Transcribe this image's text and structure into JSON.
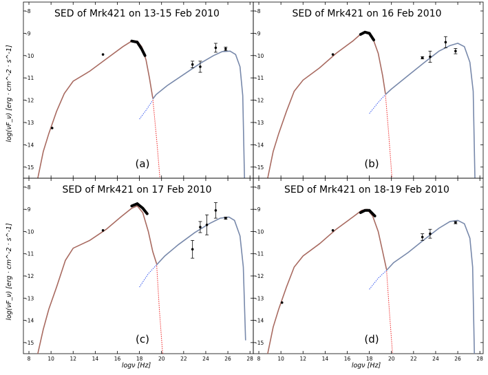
{
  "chart_data": {
    "type": "scatter",
    "xlabel": "logν [Hz]",
    "ylabel": "log(νF_ν) [erg · cm^-2 · s^-1]",
    "xlim": [
      7.5,
      28.3
    ],
    "ylim": [
      -15.5,
      -7.6
    ],
    "xticks": [
      8,
      10,
      12,
      14,
      16,
      18,
      20,
      22,
      24,
      26,
      28
    ],
    "yticks": [
      -8,
      -9,
      -10,
      -11,
      -12,
      -13,
      -14,
      -15
    ],
    "colors": {
      "synchrotron": "#a86a60",
      "ic": "#7788aa",
      "sync_ext": "#ee2222",
      "ic_ext": "#3355ee",
      "points": "#000000"
    },
    "panels": [
      {
        "title": "SED of Mrk421 on 13-15 Feb 2010",
        "tag": "(a)",
        "sync_curve": [
          [
            8.8,
            -15.5
          ],
          [
            9.3,
            -14.3
          ],
          [
            9.8,
            -13.5
          ],
          [
            10.5,
            -12.5
          ],
          [
            11.2,
            -11.7
          ],
          [
            12.0,
            -11.15
          ],
          [
            13.5,
            -10.7
          ],
          [
            15.0,
            -10.15
          ],
          [
            16.5,
            -9.6
          ],
          [
            17.3,
            -9.35
          ],
          [
            17.8,
            -9.35
          ],
          [
            18.2,
            -9.6
          ],
          [
            18.6,
            -10.2
          ],
          [
            18.9,
            -11.0
          ],
          [
            19.2,
            -11.9
          ]
        ],
        "sync_ext": [
          [
            19.2,
            -11.9
          ],
          [
            19.6,
            -14.0
          ],
          [
            19.85,
            -15.5
          ]
        ],
        "ic_curve": [
          [
            19.2,
            -11.95
          ],
          [
            19.5,
            -11.75
          ],
          [
            20.5,
            -11.35
          ],
          [
            22.0,
            -10.85
          ],
          [
            23.5,
            -10.35
          ],
          [
            24.7,
            -10.0
          ],
          [
            25.5,
            -9.82
          ],
          [
            26.2,
            -9.8
          ],
          [
            26.7,
            -9.95
          ],
          [
            27.1,
            -10.5
          ],
          [
            27.35,
            -11.8
          ],
          [
            27.5,
            -15.5
          ]
        ],
        "ic_ext": [
          [
            18.0,
            -12.85
          ],
          [
            18.6,
            -12.45
          ],
          [
            19.2,
            -12.0
          ]
        ],
        "points": [
          [
            10.1,
            -13.25,
            0
          ],
          [
            14.7,
            -9.95,
            0
          ],
          [
            22.8,
            -10.4,
            0.15
          ],
          [
            23.5,
            -10.5,
            0.25
          ],
          [
            24.9,
            -9.65,
            0.2
          ],
          [
            25.8,
            -9.7,
            0.08
          ]
        ],
        "bowtie": [
          [
            17.3,
            -9.35
          ],
          [
            17.8,
            -9.4
          ],
          [
            18.2,
            -9.7
          ],
          [
            18.5,
            -10.0
          ]
        ]
      },
      {
        "title": "SED of Mrk421 on 16 Feb 2010",
        "tag": "(b)",
        "sync_curve": [
          [
            8.8,
            -15.5
          ],
          [
            9.3,
            -14.3
          ],
          [
            9.8,
            -13.5
          ],
          [
            10.5,
            -12.5
          ],
          [
            11.2,
            -11.6
          ],
          [
            12.0,
            -11.1
          ],
          [
            13.5,
            -10.55
          ],
          [
            15.0,
            -9.9
          ],
          [
            16.5,
            -9.35
          ],
          [
            17.3,
            -9.0
          ],
          [
            17.8,
            -8.95
          ],
          [
            18.3,
            -9.2
          ],
          [
            18.8,
            -9.9
          ],
          [
            19.2,
            -10.9
          ],
          [
            19.45,
            -11.7
          ]
        ],
        "sync_ext": [
          [
            19.45,
            -11.7
          ],
          [
            19.75,
            -13.5
          ],
          [
            20.05,
            -15.5
          ]
        ],
        "ic_curve": [
          [
            19.45,
            -11.75
          ],
          [
            20.0,
            -11.5
          ],
          [
            21.5,
            -10.9
          ],
          [
            23.0,
            -10.3
          ],
          [
            24.3,
            -9.8
          ],
          [
            25.3,
            -9.55
          ],
          [
            26.0,
            -9.45
          ],
          [
            26.6,
            -9.6
          ],
          [
            27.1,
            -10.3
          ],
          [
            27.4,
            -11.6
          ],
          [
            27.55,
            -15.5
          ]
        ],
        "ic_ext": [
          [
            18.0,
            -12.6
          ],
          [
            18.8,
            -12.1
          ],
          [
            19.45,
            -11.75
          ]
        ],
        "points": [
          [
            14.7,
            -9.95,
            0
          ],
          [
            22.8,
            -10.1,
            0.05
          ],
          [
            23.5,
            -10.05,
            0.25
          ],
          [
            24.9,
            -9.4,
            0.25
          ],
          [
            25.8,
            -9.8,
            0.12
          ]
        ],
        "bowtie": [
          [
            17.2,
            -9.05
          ],
          [
            17.6,
            -8.95
          ],
          [
            18.0,
            -9.0
          ],
          [
            18.4,
            -9.3
          ]
        ]
      },
      {
        "title": "SED of Mrk421 on 17 Feb 2010",
        "tag": "(c)",
        "sync_curve": [
          [
            8.8,
            -15.5
          ],
          [
            9.3,
            -14.4
          ],
          [
            9.8,
            -13.5
          ],
          [
            10.5,
            -12.5
          ],
          [
            11.3,
            -11.3
          ],
          [
            12.0,
            -10.75
          ],
          [
            13.5,
            -10.4
          ],
          [
            15.0,
            -9.9
          ],
          [
            16.3,
            -9.35
          ],
          [
            17.3,
            -8.95
          ],
          [
            17.8,
            -8.85
          ],
          [
            18.3,
            -9.15
          ],
          [
            18.8,
            -10.0
          ],
          [
            19.2,
            -10.9
          ],
          [
            19.55,
            -11.45
          ]
        ],
        "sync_ext": [
          [
            19.55,
            -11.45
          ],
          [
            19.8,
            -13.5
          ],
          [
            20.1,
            -15.5
          ]
        ],
        "ic_curve": [
          [
            19.55,
            -11.5
          ],
          [
            20.3,
            -11.1
          ],
          [
            21.5,
            -10.6
          ],
          [
            23.0,
            -10.05
          ],
          [
            24.3,
            -9.65
          ],
          [
            25.3,
            -9.4
          ],
          [
            26.1,
            -9.35
          ],
          [
            26.6,
            -9.5
          ],
          [
            27.1,
            -10.2
          ],
          [
            27.4,
            -11.6
          ],
          [
            27.6,
            -14.9
          ]
        ],
        "ic_ext": [
          [
            18.0,
            -12.5
          ],
          [
            18.8,
            -11.9
          ],
          [
            19.55,
            -11.5
          ]
        ],
        "points": [
          [
            14.7,
            -9.95,
            0
          ],
          [
            22.8,
            -10.8,
            0.4
          ],
          [
            23.5,
            -9.8,
            0.25
          ],
          [
            24.1,
            -9.7,
            0.45
          ],
          [
            24.9,
            -9.05,
            0.35
          ],
          [
            25.8,
            -9.4,
            0.05
          ]
        ],
        "bowtie": [
          [
            17.3,
            -8.85
          ],
          [
            17.8,
            -8.75
          ],
          [
            18.3,
            -8.95
          ],
          [
            18.7,
            -9.2
          ]
        ]
      },
      {
        "title": "SED of Mrk421 on 18-19 Feb 2010",
        "tag": "(d)",
        "sync_curve": [
          [
            8.8,
            -15.5
          ],
          [
            9.3,
            -14.3
          ],
          [
            9.8,
            -13.5
          ],
          [
            10.5,
            -12.5
          ],
          [
            11.2,
            -11.6
          ],
          [
            12.0,
            -11.1
          ],
          [
            13.5,
            -10.55
          ],
          [
            15.0,
            -9.9
          ],
          [
            16.5,
            -9.35
          ],
          [
            17.3,
            -9.05
          ],
          [
            17.8,
            -9.0
          ],
          [
            18.3,
            -9.3
          ],
          [
            18.8,
            -10.0
          ],
          [
            19.2,
            -10.9
          ],
          [
            19.55,
            -11.7
          ]
        ],
        "sync_ext": [
          [
            19.55,
            -11.7
          ],
          [
            19.8,
            -13.5
          ],
          [
            20.1,
            -15.5
          ]
        ],
        "ic_curve": [
          [
            19.55,
            -11.75
          ],
          [
            20.2,
            -11.4
          ],
          [
            21.5,
            -10.95
          ],
          [
            23.0,
            -10.35
          ],
          [
            24.3,
            -9.85
          ],
          [
            25.3,
            -9.55
          ],
          [
            26.0,
            -9.5
          ],
          [
            26.6,
            -9.65
          ],
          [
            27.1,
            -10.3
          ],
          [
            27.35,
            -11.6
          ],
          [
            27.5,
            -15.5
          ]
        ],
        "ic_ext": [
          [
            18.0,
            -12.6
          ],
          [
            18.8,
            -12.1
          ],
          [
            19.55,
            -11.75
          ]
        ],
        "points": [
          [
            10.1,
            -13.2,
            0
          ],
          [
            14.7,
            -9.95,
            0
          ],
          [
            22.8,
            -10.25,
            0.15
          ],
          [
            23.5,
            -10.1,
            0.2
          ],
          [
            25.8,
            -9.6,
            0.05
          ]
        ],
        "bowtie": [
          [
            17.2,
            -9.15
          ],
          [
            17.6,
            -9.05
          ],
          [
            18.0,
            -9.05
          ],
          [
            18.5,
            -9.3
          ]
        ]
      }
    ]
  }
}
